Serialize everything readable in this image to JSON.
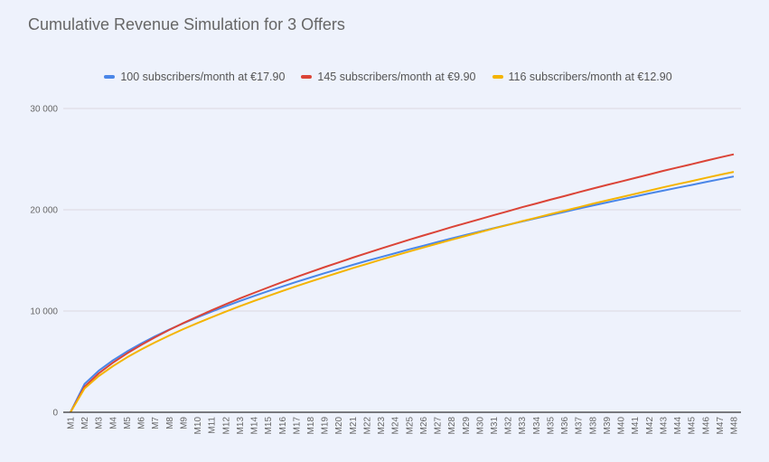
{
  "chart_data": {
    "type": "line",
    "title": "Cumulative Revenue Simulation for 3 Offers",
    "xlabel": "",
    "ylabel": "",
    "ylim": [
      0,
      30000
    ],
    "yticks": [
      0,
      10000,
      20000,
      30000
    ],
    "ytick_labels": [
      "0",
      "10 000",
      "20 000",
      "30 000"
    ],
    "grid": true,
    "legend_position": "top",
    "categories": [
      "M1",
      "M2",
      "M3",
      "M4",
      "M5",
      "M6",
      "M7",
      "M8",
      "M9",
      "M10",
      "M11",
      "M12",
      "M13",
      "M14",
      "M15",
      "M16",
      "M17",
      "M18",
      "M19",
      "M20",
      "M21",
      "M22",
      "M23",
      "M24",
      "M25",
      "M26",
      "M27",
      "M28",
      "M29",
      "M30",
      "M31",
      "M32",
      "M33",
      "M34",
      "M35",
      "M36",
      "M37",
      "M38",
      "M39",
      "M40",
      "M41",
      "M42",
      "M43",
      "M44",
      "M45",
      "M46",
      "M47",
      "M48"
    ],
    "series": [
      {
        "name": "100 subscribers/month at €17.90",
        "color": "#4a86e8",
        "values": [
          0,
          2801,
          4101,
          5126,
          6003,
          6787,
          7507,
          8168,
          8787,
          9375,
          9941,
          10476,
          10991,
          11484,
          11955,
          12417,
          12871,
          13305,
          13736,
          14140,
          14554,
          14954,
          15333,
          15705,
          16086,
          16445,
          16809,
          17168,
          17515,
          17851,
          18190,
          18520,
          18839,
          19162,
          19473,
          19786,
          20105,
          20408,
          20716,
          21010,
          21304,
          21604,
          21887,
          22173,
          22442,
          22736,
          23010,
          23287
        ]
      },
      {
        "name": "145 subscribers/month at €9.90",
        "color": "#db4437",
        "values": [
          0,
          2530,
          3836,
          4890,
          5811,
          6646,
          7413,
          8134,
          8809,
          9455,
          10072,
          10666,
          11238,
          11790,
          12324,
          12847,
          13353,
          13849,
          14327,
          14798,
          15269,
          15724,
          16169,
          16599,
          17032,
          17452,
          17867,
          18282,
          18676,
          19071,
          19473,
          19850,
          20248,
          20617,
          20991,
          21351,
          21720,
          22092,
          22449,
          22788,
          23132,
          23481,
          23835,
          24172,
          24488,
          24834,
          25158,
          25477
        ]
      },
      {
        "name": "116 subscribers/month at €12.90",
        "color": "#f4b400",
        "values": [
          0,
          2358,
          3575,
          4558,
          5416,
          6195,
          6909,
          7581,
          8211,
          8812,
          9387,
          9941,
          10474,
          10988,
          11486,
          11974,
          12446,
          12908,
          13353,
          13792,
          14231,
          14655,
          15070,
          15471,
          15874,
          16266,
          16653,
          17039,
          17407,
          17775,
          18149,
          18501,
          18871,
          19215,
          19564,
          19899,
          20243,
          20590,
          20922,
          21239,
          21559,
          21885,
          22215,
          22528,
          22823,
          23146,
          23448,
          23745
        ]
      }
    ]
  }
}
